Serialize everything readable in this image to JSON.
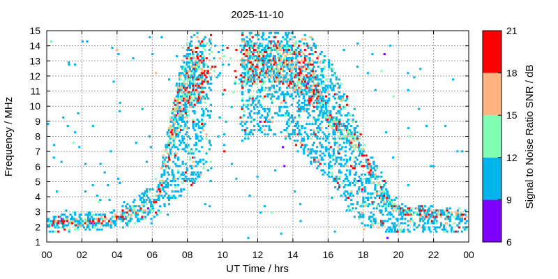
{
  "chart_data": {
    "type": "heatmap",
    "title": "2025-11-10",
    "xlabel": "UT Time / hrs",
    "ylabel": "Frequency / MHz",
    "xlim": [
      0,
      24
    ],
    "ylim": [
      1,
      15
    ],
    "x_ticks": [
      "00",
      "02",
      "04",
      "06",
      "08",
      "10",
      "12",
      "14",
      "16",
      "18",
      "20",
      "22",
      "00"
    ],
    "y_ticks": [
      "1",
      "2",
      "3",
      "4",
      "5",
      "6",
      "7",
      "8",
      "9",
      "10",
      "11",
      "12",
      "13",
      "14",
      "15"
    ],
    "grid": true,
    "colorbar": {
      "label": "Signal to Noise Ratio SNR / dB",
      "ticks": [
        "6",
        "9",
        "12",
        "15",
        "18",
        "21"
      ],
      "bins": [
        {
          "min": 6,
          "max": 9,
          "color": "#8000ff"
        },
        {
          "min": 9,
          "max": 12,
          "color": "#00b4ec"
        },
        {
          "min": 12,
          "max": 15,
          "color": "#80ffb4"
        },
        {
          "min": 15,
          "max": 18,
          "color": "#ffb480"
        },
        {
          "min": 18,
          "max": 21,
          "color": "#ff0000"
        }
      ]
    },
    "band_profile": {
      "hours": [
        0.0,
        1.0,
        2.0,
        3.0,
        4.0,
        5.0,
        6.0,
        6.5,
        7.0,
        7.5,
        8.0,
        8.5,
        9.0,
        9.5,
        10.0,
        10.5,
        11.0,
        12.0,
        13.0,
        14.0,
        15.0,
        16.0,
        16.5,
        17.0,
        17.5,
        18.0,
        18.5,
        19.0,
        19.5,
        20.0,
        21.0,
        22.0,
        23.0,
        24.0
      ],
      "low_mhz": [
        1.6,
        1.6,
        1.7,
        1.7,
        1.8,
        2.2,
        2.5,
        3.0,
        3.5,
        4.0,
        4.5,
        5.0,
        5.5,
        6.0,
        6.5,
        7.0,
        7.5,
        8.0,
        8.0,
        7.5,
        6.0,
        5.0,
        4.0,
        3.0,
        2.5,
        2.0,
        1.8,
        1.6,
        1.6,
        1.6,
        1.6,
        1.6,
        1.6,
        1.6
      ],
      "high_mhz": [
        2.6,
        2.8,
        3.0,
        3.0,
        3.1,
        3.8,
        5.0,
        6.5,
        9.5,
        12.5,
        14.5,
        15.0,
        15.0,
        15.0,
        15.0,
        15.0,
        15.0,
        15.0,
        15.0,
        15.0,
        14.5,
        13.0,
        12.0,
        11.0,
        9.0,
        7.5,
        6.5,
        5.5,
        4.5,
        3.5,
        3.4,
        3.3,
        3.2,
        3.1
      ],
      "strong_low": [
        1.9,
        1.9,
        2.0,
        2.0,
        2.3,
        2.7,
        3.0,
        4.5,
        7.0,
        8.5,
        9.5,
        10.0,
        10.5,
        10.5,
        11.0,
        11.0,
        11.0,
        11.5,
        11.5,
        11.0,
        10.0,
        8.5,
        8.0,
        7.5,
        7.0,
        6.5,
        4.5,
        3.5,
        3.0,
        2.8,
        2.6,
        2.5,
        2.5,
        2.4
      ],
      "strong_high": [
        2.4,
        2.5,
        2.6,
        2.6,
        2.8,
        3.4,
        3.6,
        5.5,
        9.5,
        12.0,
        13.5,
        14.0,
        14.5,
        14.5,
        14.5,
        14.5,
        14.5,
        14.0,
        14.0,
        14.0,
        13.0,
        9.5,
        9.0,
        8.5,
        8.0,
        7.0,
        5.5,
        4.5,
        3.6,
        3.3,
        3.2,
        3.1,
        3.0,
        3.0
      ]
    },
    "notes": [
      "sparse gap near 10 UT"
    ]
  }
}
